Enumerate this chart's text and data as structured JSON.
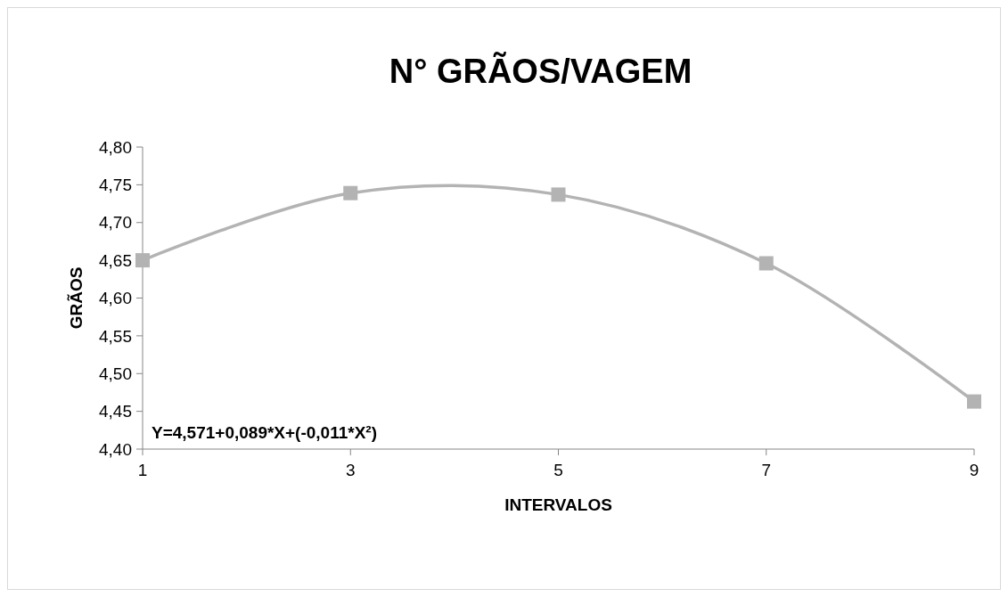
{
  "chart_data": {
    "type": "line",
    "title": "N° GRÃOS/VAGEM",
    "xlabel": "INTERVALOS",
    "ylabel": "GRÃOS",
    "x": [
      1,
      3,
      5,
      7,
      9
    ],
    "series": [
      {
        "color": "#b3b3b3",
        "values": [
          4.65,
          4.739,
          4.737,
          4.646,
          4.463
        ]
      }
    ],
    "xlim": [
      1,
      9
    ],
    "xticks": [
      1,
      3,
      5,
      7,
      9
    ],
    "ylim": [
      4.4,
      4.8
    ],
    "yticks": [
      {
        "value": 4.4,
        "label": "4,40"
      },
      {
        "value": 4.45,
        "label": "4,45"
      },
      {
        "value": 4.5,
        "label": "4,50"
      },
      {
        "value": 4.55,
        "label": "4,55"
      },
      {
        "value": 4.6,
        "label": "4,60"
      },
      {
        "value": 4.65,
        "label": "4,65"
      },
      {
        "value": 4.7,
        "label": "4,70"
      },
      {
        "value": 4.75,
        "label": "4,75"
      },
      {
        "value": 4.8,
        "label": "4,80"
      }
    ],
    "annotations": [
      "Y=4,571+0,089*X+(-0,011*X²)"
    ],
    "marker": "square",
    "grid": false
  }
}
